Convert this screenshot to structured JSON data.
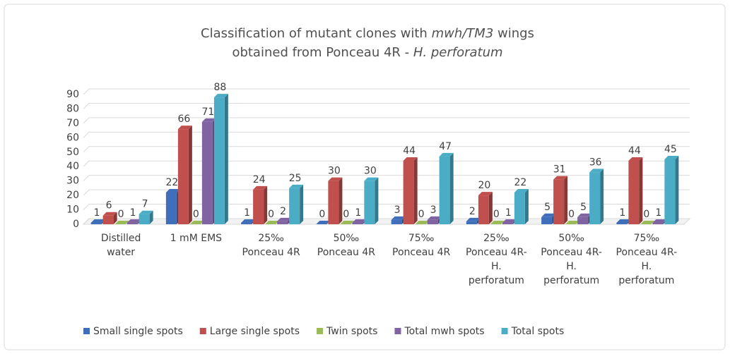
{
  "chart_data": {
    "type": "bar3d",
    "title": [
      {
        "text": "Classification of mutant clones with ",
        "italic": false
      },
      {
        "text": "mwh/TM3",
        "italic": true
      },
      {
        "text": " wings obtained from Ponceau 4R - ",
        "italic": false
      },
      {
        "text": "H. perforatum",
        "italic": true
      }
    ],
    "categories": [
      "Distilled water",
      "1 mM EMS",
      "25‰ Ponceau 4R",
      "50‰ Ponceau 4R",
      "75‰ Ponceau 4R",
      "25‰ Ponceau 4R-H. perforatum",
      "50‰ Ponceau 4R-H. perforatum",
      "75‰ Ponceau 4R-H. perforatum"
    ],
    "series": [
      {
        "name": "Small single spots",
        "color": "#3f6fba",
        "values": [
          1,
          22,
          1,
          0,
          3,
          2,
          5,
          1
        ]
      },
      {
        "name": "Large single spots",
        "color": "#c0504d",
        "values": [
          6,
          66,
          24,
          30,
          44,
          20,
          31,
          44
        ]
      },
      {
        "name": "Twin spots",
        "color": "#9bbb59",
        "values": [
          0,
          0,
          0,
          0,
          0,
          0,
          0,
          0
        ]
      },
      {
        "name": "Total mwh spots",
        "color": "#8064a2",
        "values": [
          1,
          71,
          2,
          1,
          3,
          1,
          5,
          1
        ]
      },
      {
        "name": "Total spots",
        "color": "#4bacc6",
        "values": [
          7,
          88,
          25,
          30,
          47,
          22,
          36,
          45
        ]
      }
    ],
    "ylim": [
      0,
      90
    ],
    "yticks": [
      0,
      10,
      20,
      30,
      40,
      50,
      60,
      70,
      80,
      90
    ],
    "grid": true,
    "legend": "bottom"
  }
}
